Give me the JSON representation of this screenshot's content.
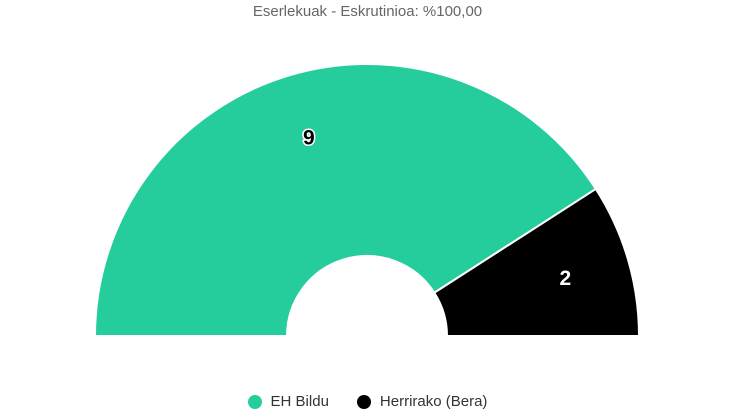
{
  "chart_data": {
    "type": "pie",
    "variant": "semicircle-parliament",
    "title": "Eserlekuak - Eskrutinioa: %100,00",
    "series": [
      {
        "name": "EH Bildu",
        "value": 9,
        "color": "#25cc9c",
        "label": "9"
      },
      {
        "name": "Herrirako (Bera)",
        "value": 2,
        "color": "#000000",
        "label": "2"
      }
    ],
    "legend_placement": "bottom-center"
  },
  "legend": {
    "items": [
      {
        "label": "EH Bildu",
        "color": "#25cc9c"
      },
      {
        "label": "Herrirako (Bera)",
        "color": "#000000"
      }
    ]
  }
}
